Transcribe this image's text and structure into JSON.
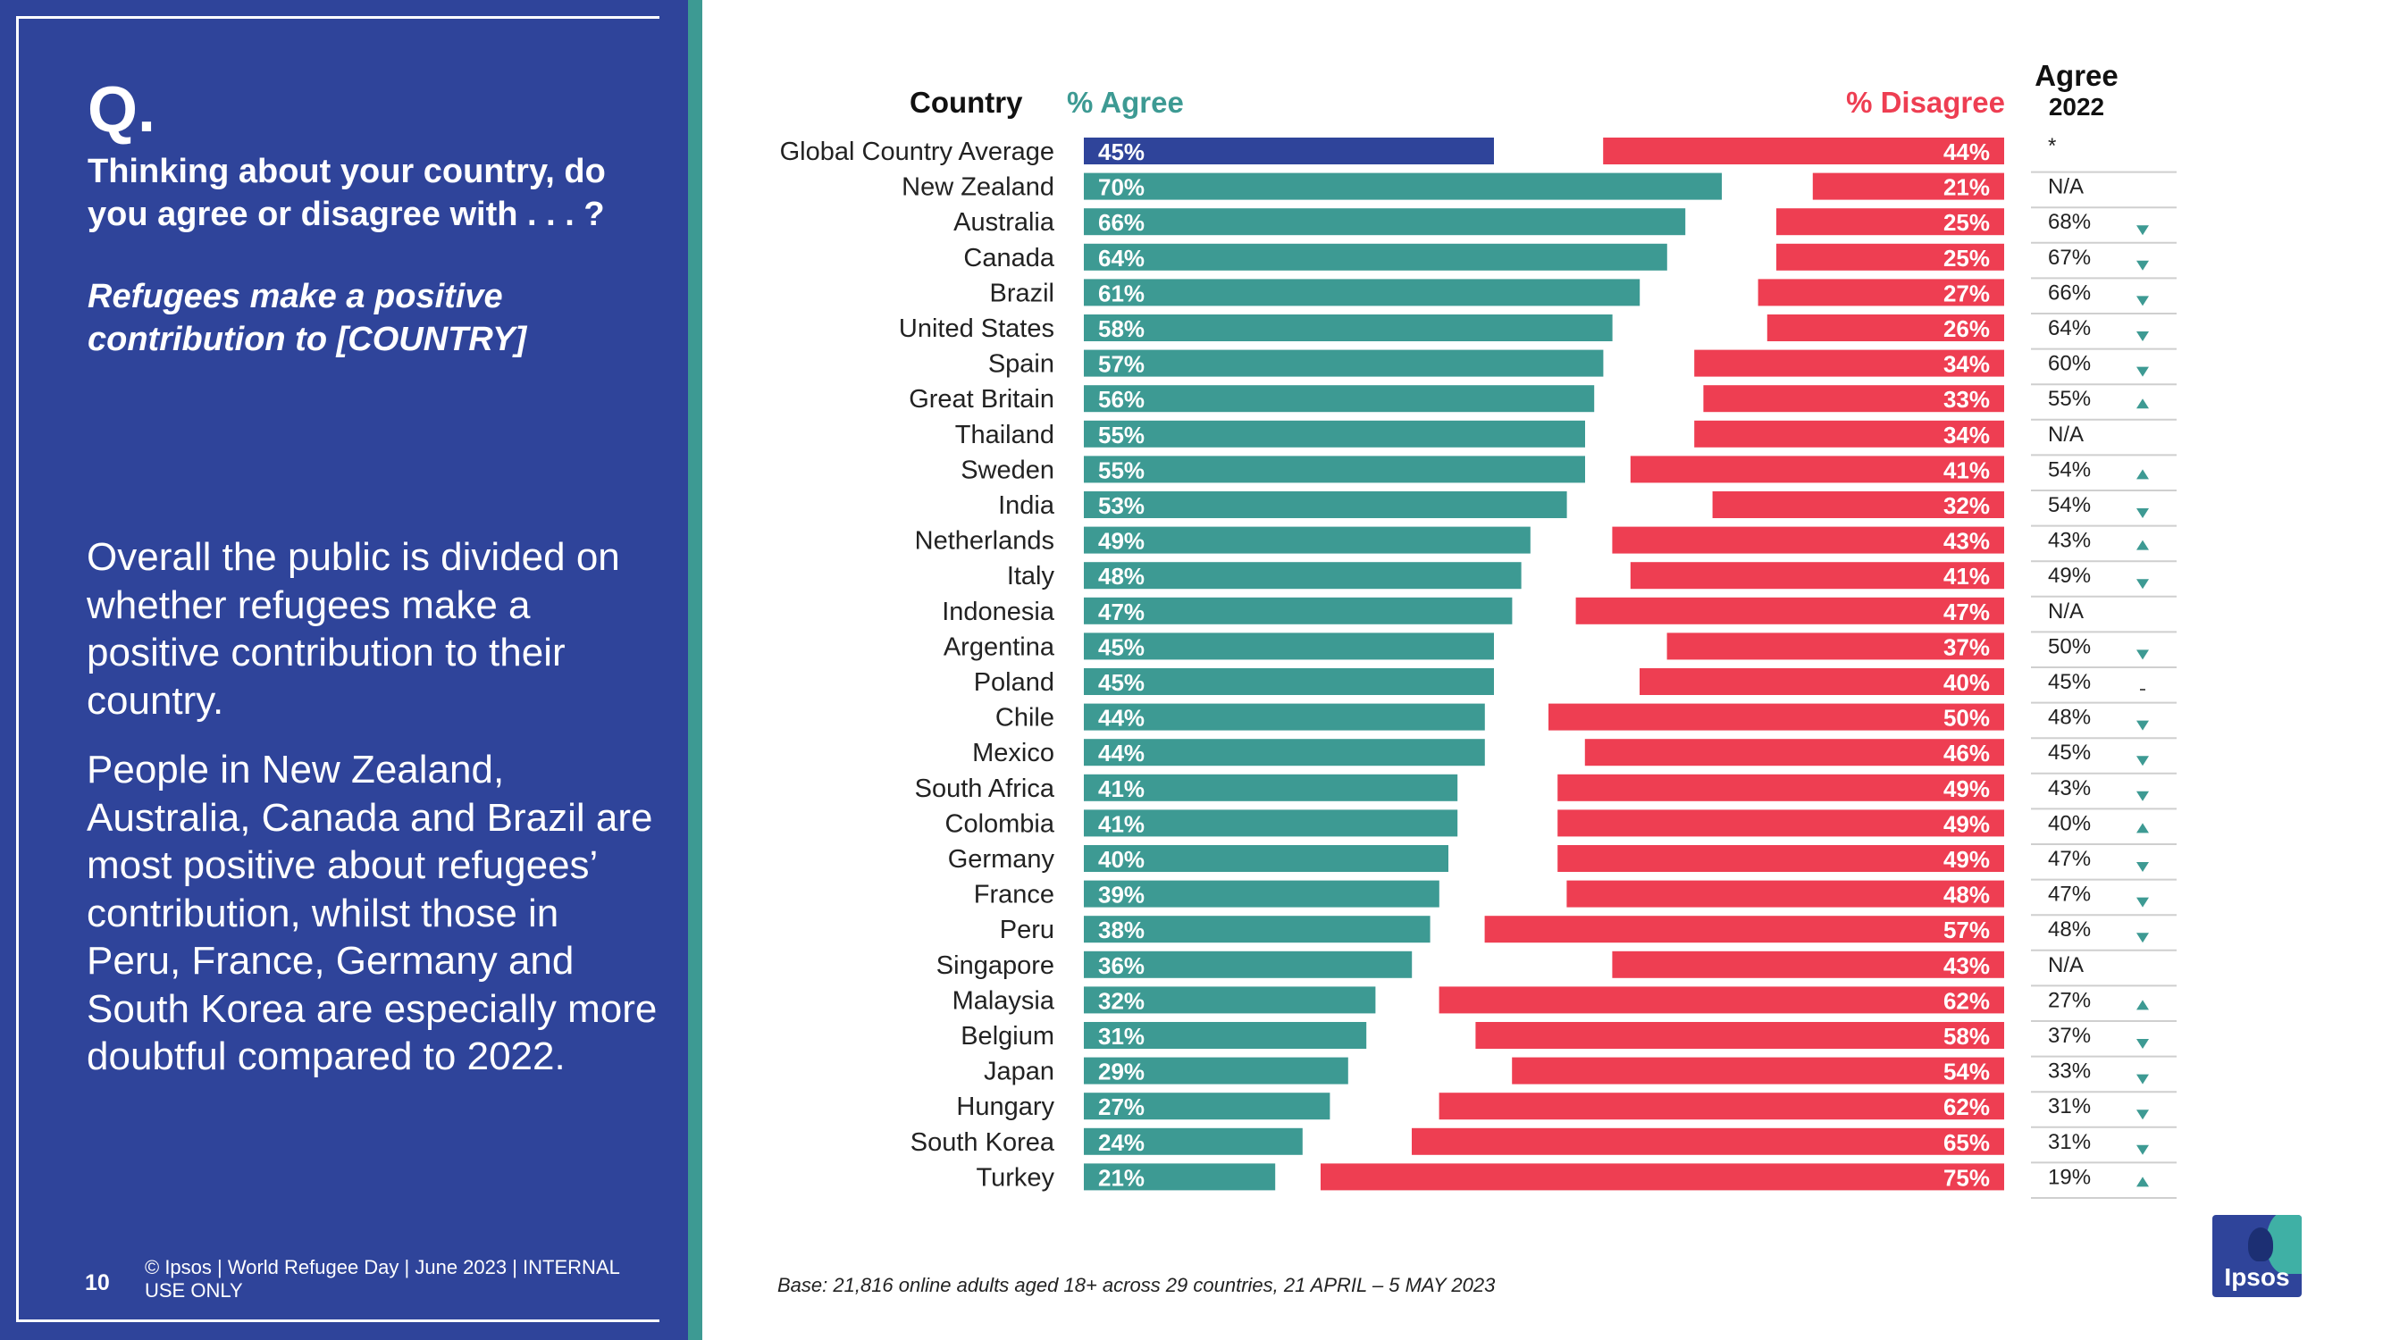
{
  "sidebar": {
    "q_label": "Q.",
    "question": "Thinking about your country, do you agree or disagree with . . . ?",
    "statement": "Refugees make a positive contribution to [COUNTRY]",
    "insight_1": "Overall the public is divided on whether refugees make a positive contribution to their country.",
    "insight_2": "People in New Zealand, Australia, Canada and Brazil are most positive about refugees’ contribution, whilst those in Peru, France, Germany and South Korea are especially more doubtful compared to 2022.",
    "page_number": "10",
    "footer": "© Ipsos | World Refugee Day | June 2023 | INTERNAL USE ONLY"
  },
  "base_note": "Base: 21,816 online adults aged 18+ across 29 countries,  21 APRIL – 5 MAY 2023",
  "logo_text": "Ipsos",
  "colors": {
    "panel": "#2f449a",
    "agree": "#3d9a93",
    "agree_global": "#2f449a",
    "disagree": "#ee3e52",
    "text": "#222222"
  },
  "chart_data": {
    "type": "bar",
    "orientation": "diverging-horizontal",
    "headers": {
      "country": "Country",
      "agree": "% Agree",
      "disagree": "% Disagree",
      "agree_2022_line1": "Agree",
      "agree_2022_line2": "2022"
    },
    "value_suffix": "%",
    "xlim": [
      0,
      100
    ],
    "categories": [
      "Global Country Average",
      "New Zealand",
      "Australia",
      "Canada",
      "Brazil",
      "United States",
      "Spain",
      "Great Britain",
      "Thailand",
      "Sweden",
      "India",
      "Netherlands",
      "Italy",
      "Indonesia",
      "Argentina",
      "Poland",
      "Chile",
      "Mexico",
      "South Africa",
      "Colombia",
      "Germany",
      "France",
      "Peru",
      "Singapore",
      "Malaysia",
      "Belgium",
      "Japan",
      "Hungary",
      "South Korea",
      "Turkey"
    ],
    "series": [
      {
        "name": "% Agree",
        "values": [
          45,
          70,
          66,
          64,
          61,
          58,
          57,
          56,
          55,
          55,
          53,
          49,
          48,
          47,
          45,
          45,
          44,
          44,
          41,
          41,
          40,
          39,
          38,
          36,
          32,
          31,
          29,
          27,
          24,
          21
        ]
      },
      {
        "name": "% Disagree",
        "values": [
          44,
          21,
          25,
          25,
          27,
          26,
          34,
          33,
          34,
          41,
          32,
          43,
          41,
          47,
          37,
          40,
          50,
          46,
          49,
          49,
          49,
          48,
          57,
          43,
          62,
          58,
          54,
          62,
          65,
          75
        ]
      }
    ],
    "agree_2022": [
      "*",
      "N/A",
      "68%",
      "67%",
      "66%",
      "64%",
      "60%",
      "55%",
      "N/A",
      "54%",
      "54%",
      "43%",
      "49%",
      "N/A",
      "50%",
      "45%",
      "48%",
      "45%",
      "43%",
      "40%",
      "47%",
      "47%",
      "48%",
      "N/A",
      "27%",
      "37%",
      "33%",
      "31%",
      "31%",
      "19%"
    ],
    "change": [
      "",
      "",
      "down",
      "down",
      "down",
      "down",
      "down",
      "up",
      "",
      "up",
      "down",
      "up",
      "down",
      "",
      "down",
      "same",
      "down",
      "down",
      "down",
      "up",
      "down",
      "down",
      "down",
      "",
      "up",
      "down",
      "down",
      "down",
      "down",
      "up"
    ]
  }
}
